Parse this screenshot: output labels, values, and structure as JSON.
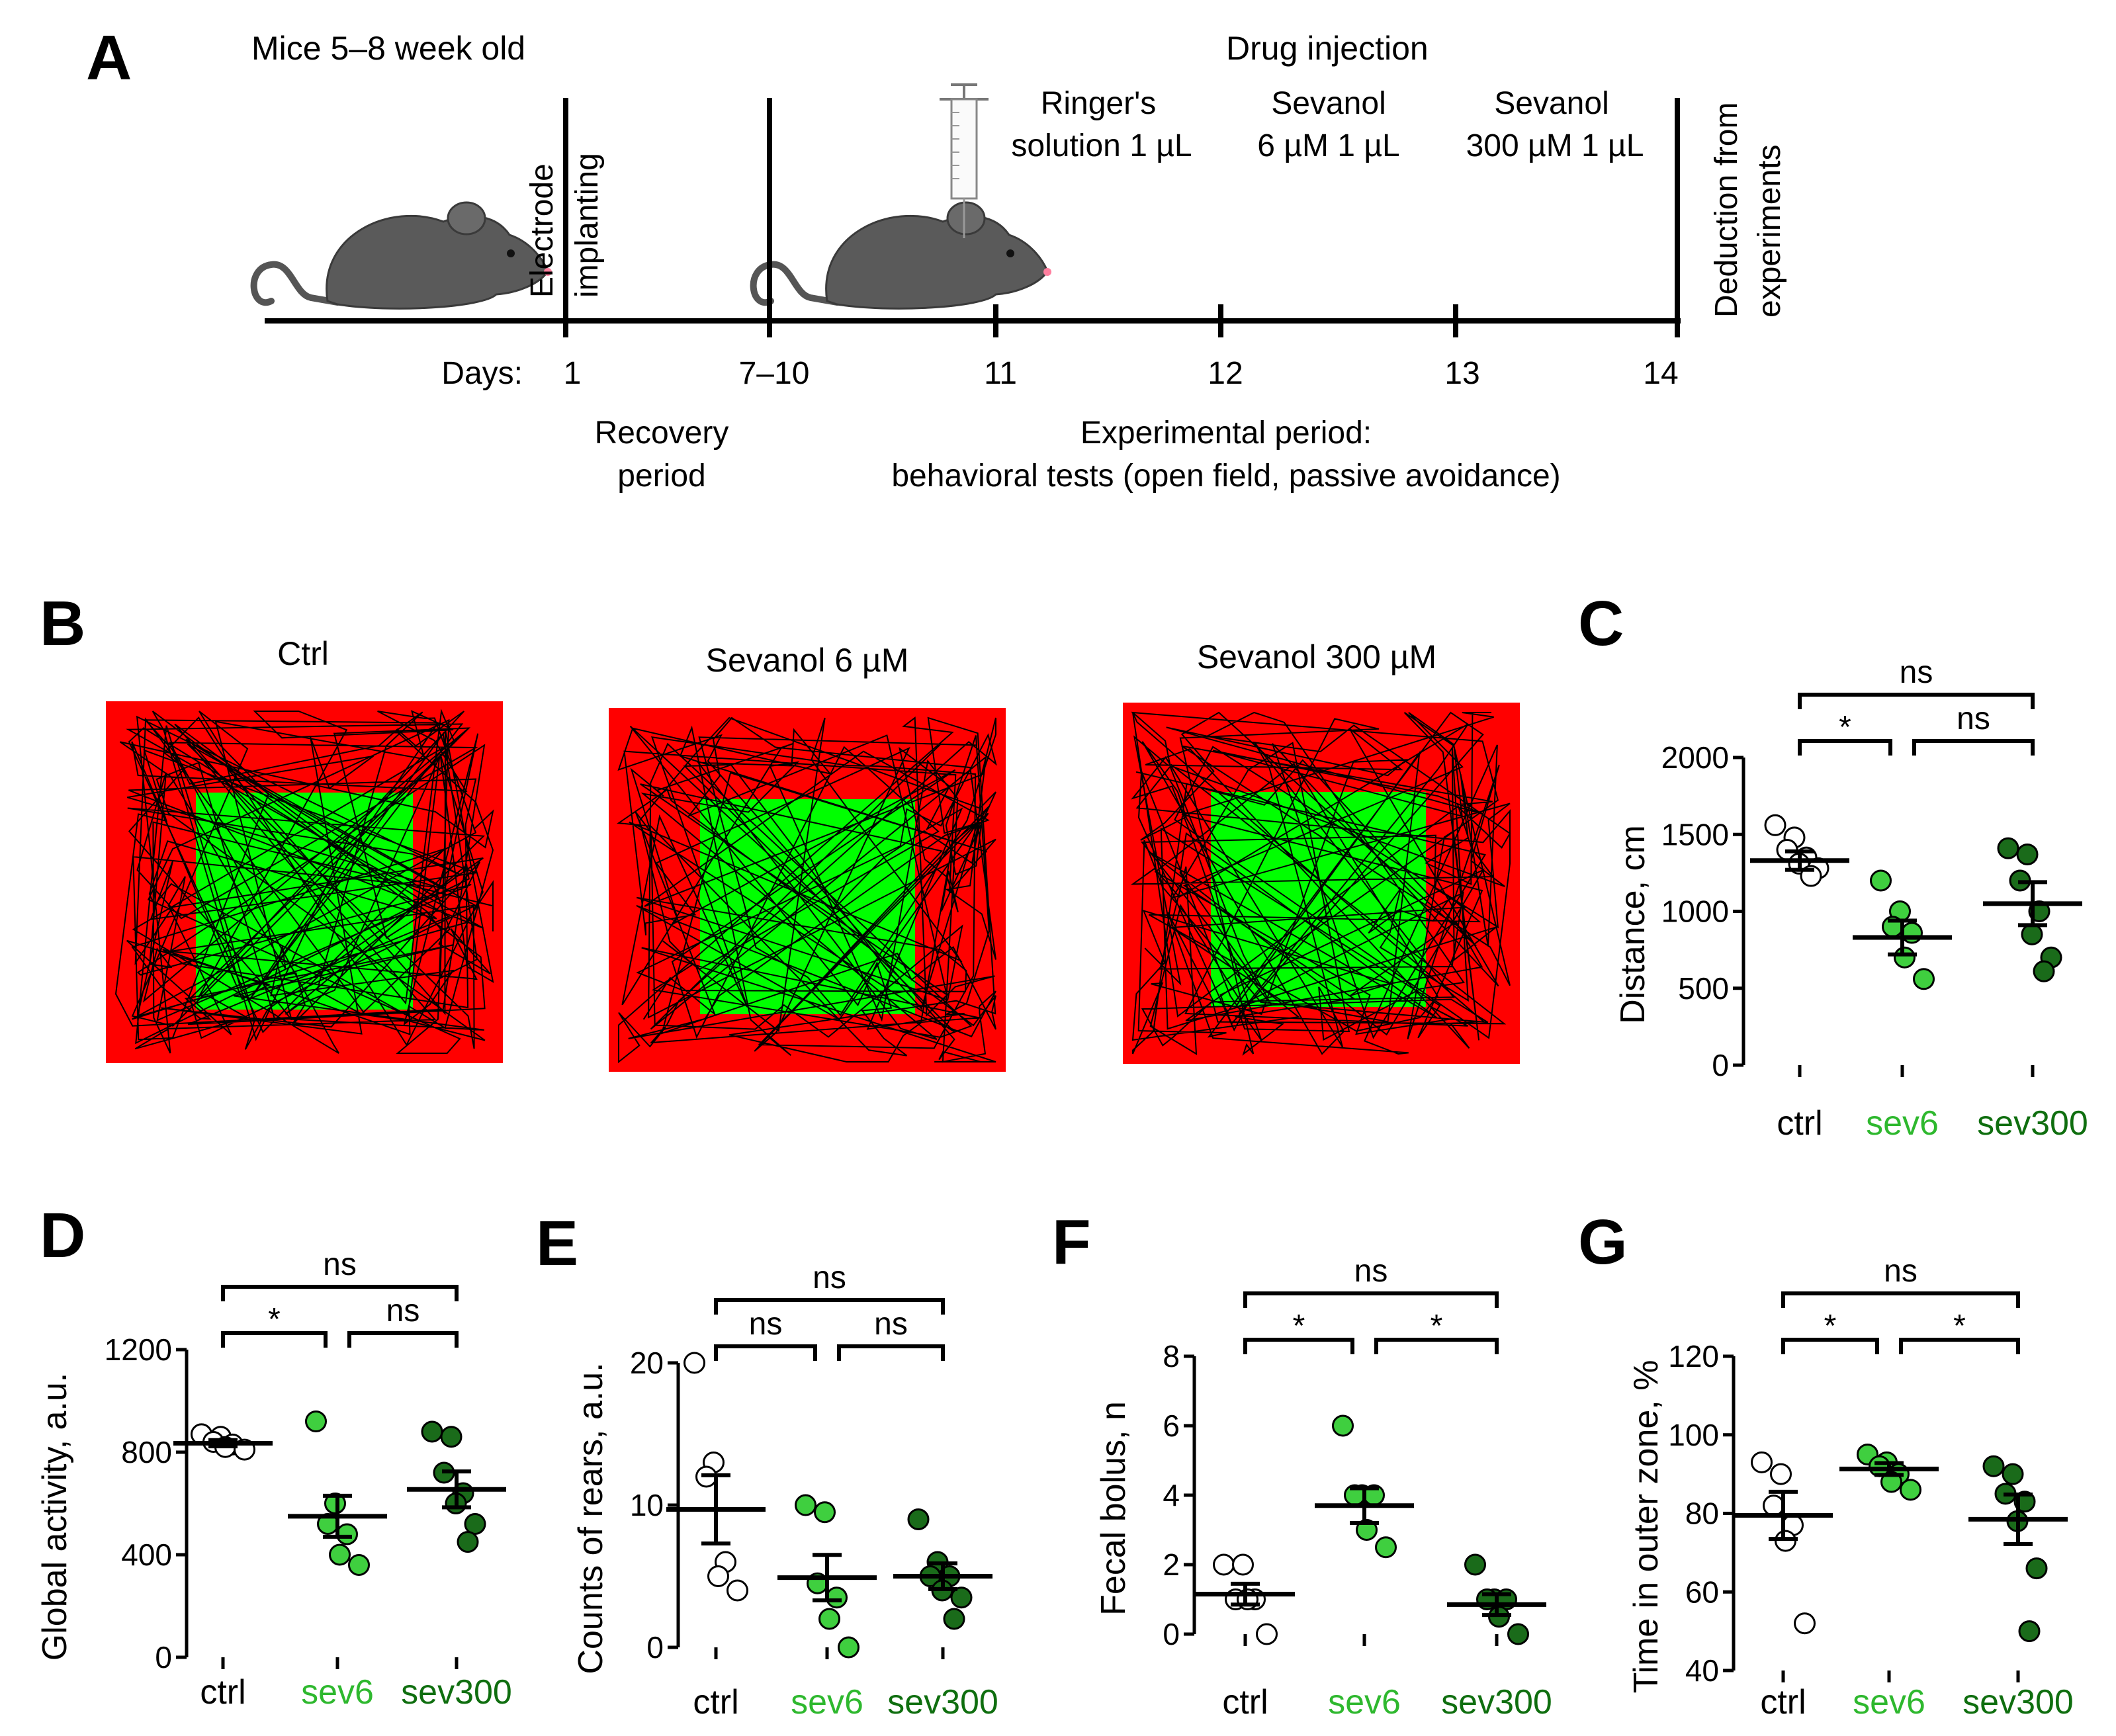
{
  "panel_labels": {
    "A": "A",
    "B": "B",
    "C": "C",
    "D": "D",
    "E": "E",
    "F": "F",
    "G": "G"
  },
  "colors": {
    "ctrl": "#ffffff",
    "sev6": "#3fcf3f",
    "sev300": "#1a6b1a",
    "sev6_text": "#2eb82e",
    "sev300_text": "#0f6e0f",
    "field_outer": "#ff0000",
    "field_center": "#00ff00"
  },
  "timeline": {
    "mice_age": "Mice 5–8 week old",
    "electrode": "Electrode",
    "implanting": "implanting",
    "drug_injection": "Drug injection",
    "ringer_1": "Ringer's",
    "ringer_2": "solution  1 µL",
    "sev6_1": "Sevanol",
    "sev6_2": "6 µM 1 µL",
    "sev300_1": "Sevanol",
    "sev300_2": "300 µM 1 µL",
    "deduction_1": "Deduction from",
    "deduction_2": "experiments",
    "days_label": "Days:",
    "days": [
      "1",
      "7–10",
      "11",
      "12",
      "13",
      "14"
    ],
    "recovery_1": "Recovery",
    "recovery_2": "period",
    "experimental_1": "Experimental period:",
    "experimental_2": "behavioral tests (open field, passive avoidance)"
  },
  "open_field": {
    "titles": [
      "Ctrl",
      "Sevanol 6 µM",
      "Sevanol 300 µM"
    ]
  },
  "chart_data": [
    {
      "panel": "C",
      "type": "scatter",
      "ylabel": "Distance, cm",
      "ylim": [
        0,
        2000
      ],
      "yticks": [
        "0",
        "500",
        "1000",
        "1500",
        "2000"
      ],
      "categories": [
        "ctrl",
        "sev6",
        "sev300"
      ],
      "series": [
        {
          "name": "ctrl",
          "points": [
            1560,
            1480,
            1400,
            1350,
            1310,
            1280,
            1230
          ],
          "mean": 1330,
          "sem": 60
        },
        {
          "name": "sev6",
          "points": [
            1200,
            1000,
            900,
            860,
            700,
            560
          ],
          "mean": 830,
          "sem": 110
        },
        {
          "name": "sev300",
          "points": [
            1410,
            1370,
            1200,
            1000,
            850,
            700,
            610
          ],
          "mean": 1050,
          "sem": 140
        }
      ],
      "comparisons": [
        {
          "from": 0,
          "to": 2,
          "label": "ns",
          "level": 2
        },
        {
          "from": 0,
          "to": 1,
          "label": "*",
          "level": 1
        },
        {
          "from": 1,
          "to": 2,
          "label": "ns",
          "level": 1
        }
      ]
    },
    {
      "panel": "D",
      "type": "scatter",
      "ylabel": "Global activity, a.u.",
      "ylim": [
        0,
        1200
      ],
      "yticks": [
        "0",
        "400",
        "800",
        "1200"
      ],
      "categories": [
        "ctrl",
        "sev6",
        "sev300"
      ],
      "series": [
        {
          "name": "ctrl",
          "points": [
            870,
            860,
            840,
            830,
            820,
            810
          ],
          "mean": 835,
          "sem": 12
        },
        {
          "name": "sev6",
          "points": [
            920,
            600,
            520,
            480,
            400,
            360
          ],
          "mean": 550,
          "sem": 80
        },
        {
          "name": "sev300",
          "points": [
            880,
            860,
            720,
            640,
            600,
            520,
            450
          ],
          "mean": 655,
          "sem": 70
        }
      ],
      "comparisons": [
        {
          "from": 0,
          "to": 2,
          "label": "ns",
          "level": 2
        },
        {
          "from": 0,
          "to": 1,
          "label": "*",
          "level": 1
        },
        {
          "from": 1,
          "to": 2,
          "label": "ns",
          "level": 1
        }
      ]
    },
    {
      "panel": "E",
      "type": "scatter",
      "ylabel": "Counts of rears, a.u.",
      "ylim": [
        0,
        20
      ],
      "yticks": [
        "0",
        "10",
        "20"
      ],
      "categories": [
        "ctrl",
        "sev6",
        "sev300"
      ],
      "series": [
        {
          "name": "ctrl",
          "points": [
            20,
            13,
            12,
            6,
            5,
            4
          ],
          "mean": 9.7,
          "sem": 2.4
        },
        {
          "name": "sev6",
          "points": [
            10,
            9.5,
            4.5,
            3.5,
            2,
            0
          ],
          "mean": 4.9,
          "sem": 1.6
        },
        {
          "name": "sev300",
          "points": [
            9,
            6,
            5,
            5,
            4,
            3.5,
            2
          ],
          "mean": 5,
          "sem": 0.9
        }
      ],
      "comparisons": [
        {
          "from": 0,
          "to": 2,
          "label": "ns",
          "level": 2
        },
        {
          "from": 0,
          "to": 1,
          "label": "ns",
          "level": 1
        },
        {
          "from": 1,
          "to": 2,
          "label": "ns",
          "level": 1
        }
      ]
    },
    {
      "panel": "F",
      "type": "scatter",
      "ylabel": "Fecal bolus, n",
      "ylim": [
        0,
        8
      ],
      "yticks": [
        "0",
        "2",
        "4",
        "6",
        "8"
      ],
      "categories": [
        "ctrl",
        "sev6",
        "sev300"
      ],
      "series": [
        {
          "name": "ctrl",
          "points": [
            2,
            2,
            1,
            1,
            1,
            0
          ],
          "mean": 1.15,
          "sem": 0.3
        },
        {
          "name": "sev6",
          "points": [
            6,
            4,
            4,
            4,
            3,
            2.5
          ],
          "mean": 3.7,
          "sem": 0.5
        },
        {
          "name": "sev300",
          "points": [
            2,
            1,
            1,
            1,
            0.5,
            0
          ],
          "mean": 0.85,
          "sem": 0.3
        }
      ],
      "comparisons": [
        {
          "from": 0,
          "to": 2,
          "label": "ns",
          "level": 2
        },
        {
          "from": 0,
          "to": 1,
          "label": "*",
          "level": 1
        },
        {
          "from": 1,
          "to": 2,
          "label": "*",
          "level": 1
        }
      ]
    },
    {
      "panel": "G",
      "type": "scatter",
      "ylabel": "Time in outer zone, %",
      "ylim": [
        40,
        120
      ],
      "yticks": [
        "40",
        "60",
        "80",
        "100",
        "120"
      ],
      "categories": [
        "ctrl",
        "sev6",
        "sev300"
      ],
      "series": [
        {
          "name": "ctrl",
          "points": [
            93,
            90,
            82,
            77,
            73,
            52
          ],
          "mean": 79.5,
          "sem": 6
        },
        {
          "name": "sev6",
          "points": [
            95,
            93,
            92,
            90,
            88,
            86
          ],
          "mean": 91.3,
          "sem": 1.5
        },
        {
          "name": "sev300",
          "points": [
            92,
            90,
            85,
            83,
            78,
            66,
            50
          ],
          "mean": 78.5,
          "sem": 6.3
        }
      ],
      "comparisons": [
        {
          "from": 0,
          "to": 2,
          "label": "ns",
          "level": 2
        },
        {
          "from": 0,
          "to": 1,
          "label": "*",
          "level": 1
        },
        {
          "from": 1,
          "to": 2,
          "label": "*",
          "level": 1
        }
      ]
    }
  ]
}
